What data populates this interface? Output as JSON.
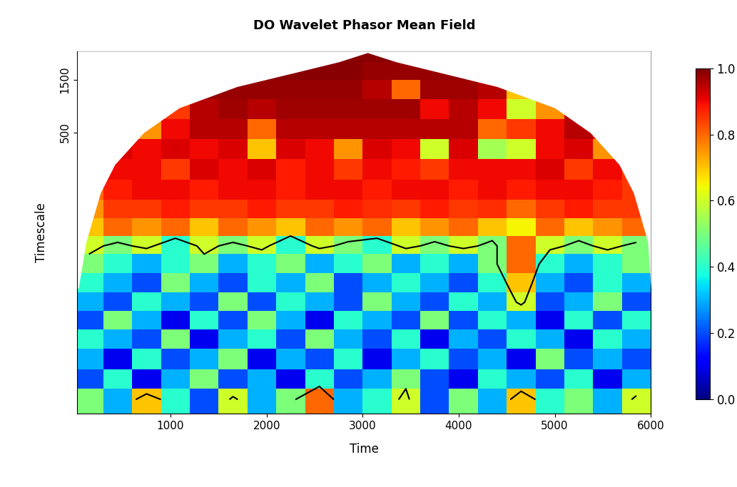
{
  "chart_data": {
    "type": "heatmap",
    "title": "DO Wavelet Phasor Mean Field",
    "xlabel": "Time",
    "ylabel": "Timescale",
    "log": "y",
    "xlim": [
      30,
      6000
    ],
    "ylim": [
      1.5,
      2700
    ],
    "xticks": [
      1000,
      2000,
      3000,
      4000,
      5000,
      6000
    ],
    "yticks": [
      500,
      1500
    ],
    "x": [
      150,
      450,
      750,
      1050,
      1350,
      1650,
      1950,
      2250,
      2550,
      2850,
      3150,
      3450,
      3750,
      4050,
      4350,
      4650,
      4950,
      5250,
      5550,
      5850
    ],
    "y": [
      2,
      3,
      4.5,
      7,
      10,
      15,
      22,
      33,
      48,
      70,
      100,
      150,
      230,
      350,
      530,
      800,
      1200,
      1800,
      2500
    ],
    "cells": [
      [
        0.5,
        0.3,
        0.7,
        0.4,
        0.2,
        0.6,
        0.3,
        0.5,
        0.8,
        0.3,
        0.4,
        0.6,
        0.2,
        0.5,
        0.3,
        0.7,
        0.4,
        0.5,
        0.3,
        0.6
      ],
      [
        0.2,
        0.4,
        0.1,
        0.3,
        0.5,
        0.2,
        0.3,
        0.1,
        0.4,
        0.2,
        0.3,
        0.5,
        0.2,
        0.1,
        0.4,
        0.3,
        0.2,
        0.4,
        0.1,
        0.3
      ],
      [
        0.3,
        0.1,
        0.4,
        0.2,
        0.3,
        0.5,
        0.1,
        0.3,
        0.2,
        0.4,
        0.1,
        0.3,
        0.4,
        0.2,
        0.3,
        0.1,
        0.5,
        0.2,
        0.3,
        0.2
      ],
      [
        0.4,
        0.3,
        0.2,
        0.5,
        0.1,
        0.3,
        0.4,
        0.2,
        0.5,
        0.3,
        0.2,
        0.4,
        0.1,
        0.3,
        0.2,
        0.4,
        0.3,
        0.1,
        0.4,
        0.3
      ],
      [
        0.2,
        0.5,
        0.3,
        0.1,
        0.4,
        0.2,
        0.5,
        0.3,
        0.1,
        0.4,
        0.3,
        0.2,
        0.5,
        0.2,
        0.4,
        0.3,
        0.1,
        0.4,
        0.2,
        0.4
      ],
      [
        0.3,
        0.2,
        0.4,
        0.3,
        0.2,
        0.5,
        0.2,
        0.4,
        0.3,
        0.2,
        0.5,
        0.3,
        0.2,
        0.4,
        0.3,
        0.6,
        0.2,
        0.3,
        0.5,
        0.2
      ],
      [
        0.4,
        0.3,
        0.2,
        0.5,
        0.3,
        0.2,
        0.4,
        0.3,
        0.5,
        0.2,
        0.3,
        0.4,
        0.3,
        0.2,
        0.4,
        0.7,
        0.3,
        0.2,
        0.4,
        0.3
      ],
      [
        0.5,
        0.4,
        0.3,
        0.4,
        0.5,
        0.3,
        0.4,
        0.5,
        0.3,
        0.4,
        0.5,
        0.3,
        0.4,
        0.3,
        0.5,
        0.8,
        0.4,
        0.3,
        0.4,
        0.5
      ],
      [
        0.6,
        0.5,
        0.6,
        0.4,
        0.6,
        0.5,
        0.6,
        0.4,
        0.6,
        0.5,
        0.4,
        0.6,
        0.5,
        0.6,
        0.5,
        0.8,
        0.6,
        0.5,
        0.6,
        0.5
      ],
      [
        0.7,
        0.8,
        0.75,
        0.8,
        0.7,
        0.8,
        0.75,
        0.7,
        0.8,
        0.75,
        0.8,
        0.7,
        0.75,
        0.8,
        0.7,
        0.65,
        0.8,
        0.7,
        0.75,
        0.8
      ],
      [
        0.75,
        0.85,
        0.85,
        0.88,
        0.85,
        0.85,
        0.88,
        0.85,
        0.85,
        0.88,
        0.86,
        0.85,
        0.88,
        0.85,
        0.86,
        0.8,
        0.85,
        0.88,
        0.85,
        0.85
      ],
      [
        0.8,
        0.88,
        0.9,
        0.9,
        0.88,
        0.9,
        0.9,
        0.88,
        0.9,
        0.9,
        0.88,
        0.9,
        0.9,
        0.88,
        0.9,
        0.88,
        0.9,
        0.9,
        0.88,
        0.85
      ],
      [
        0.85,
        0.9,
        0.9,
        0.85,
        0.92,
        0.9,
        0.92,
        0.88,
        0.9,
        0.85,
        0.9,
        0.88,
        0.85,
        0.9,
        0.9,
        0.9,
        0.92,
        0.85,
        0.9,
        0.85
      ],
      [
        0.85,
        0.92,
        0.9,
        0.92,
        0.9,
        0.92,
        0.7,
        0.92,
        0.9,
        0.75,
        0.92,
        0.9,
        0.6,
        0.92,
        0.55,
        0.6,
        0.9,
        0.92,
        0.75,
        0.9
      ],
      [
        0.9,
        0.9,
        0.75,
        0.9,
        0.95,
        0.95,
        0.8,
        0.95,
        0.95,
        0.95,
        0.95,
        0.95,
        0.95,
        0.95,
        0.8,
        0.85,
        0.9,
        0.95,
        0.9,
        0.9
      ],
      [
        0.9,
        0.95,
        0.95,
        0.85,
        0.95,
        0.97,
        0.95,
        0.97,
        0.97,
        0.97,
        0.97,
        0.97,
        0.9,
        0.95,
        0.9,
        0.6,
        0.75,
        0.95,
        0.95,
        0.9
      ],
      [
        0.95,
        0.95,
        0.97,
        0.95,
        0.98,
        0.98,
        0.98,
        0.98,
        0.98,
        0.98,
        0.95,
        0.8,
        0.97,
        0.97,
        0.95,
        0.7,
        0.6,
        0.9,
        0.95,
        0.95
      ],
      [
        0.97,
        0.98,
        0.98,
        0.98,
        0.99,
        0.99,
        0.99,
        0.99,
        0.99,
        0.99,
        0.98,
        0.98,
        0.98,
        0.98,
        0.97,
        0.9,
        0.9,
        0.95,
        0.97,
        0.97
      ],
      [
        0.99,
        0.99,
        0.99,
        0.99,
        0.99,
        0.99,
        0.99,
        0.99,
        0.99,
        0.99,
        0.99,
        0.99,
        0.99,
        0.99,
        0.99,
        0.99,
        0.99,
        0.99,
        0.99,
        0.99
      ]
    ],
    "contour_level": 0.55,
    "coi": {
      "x": [
        40,
        120,
        270,
        420,
        720,
        1090,
        1690,
        2300,
        2750,
        3050,
        3350,
        3800,
        4400,
        5000,
        5370,
        5670,
        5820,
        5970,
        6000
      ],
      "y": [
        20,
        52,
        144,
        259,
        500,
        835,
        1295,
        1736,
        2160,
        2615,
        2160,
        1736,
        1295,
        835,
        500,
        259,
        144,
        52,
        20
      ]
    },
    "colorbar_range": [
      0,
      1
    ],
    "colorbar_ticks": [
      {
        "value": 0,
        "label": "0.0"
      },
      0.2,
      0.4,
      0.6,
      0.8,
      {
        "value": 1,
        "label": "1.0"
      }
    ]
  }
}
